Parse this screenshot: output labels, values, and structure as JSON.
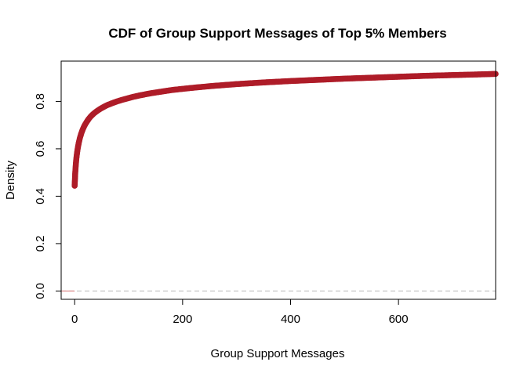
{
  "chart_data": {
    "type": "scatter",
    "title": "CDF of Group Support Messages of Top 5% Members",
    "xlabel": "Group Support Messages",
    "ylabel": "Density",
    "xlim": [
      -25,
      780
    ],
    "ylim": [
      -0.035,
      0.97
    ],
    "x_ticks": [
      0,
      200,
      400,
      600
    ],
    "x_tick_labels": [
      "0",
      "200",
      "400",
      "600"
    ],
    "y_ticks": [
      0.0,
      0.2,
      0.4,
      0.6,
      0.8
    ],
    "y_tick_labels": [
      "0.0",
      "0.2",
      "0.4",
      "0.6",
      "0.8"
    ],
    "grid": false,
    "series": [
      {
        "color": "#ae1c28",
        "marker": "filled-circle",
        "points": [
          [
            0,
            0.444
          ],
          [
            1,
            0.496
          ],
          [
            2,
            0.53
          ],
          [
            3,
            0.556
          ],
          [
            4,
            0.575
          ],
          [
            5,
            0.592
          ],
          [
            6,
            0.606
          ],
          [
            7,
            0.618
          ],
          [
            8,
            0.629
          ],
          [
            9,
            0.639
          ],
          [
            10,
            0.648
          ],
          [
            12,
            0.663
          ],
          [
            14,
            0.676
          ],
          [
            16,
            0.687
          ],
          [
            18,
            0.697
          ],
          [
            20,
            0.705
          ],
          [
            23,
            0.716
          ],
          [
            26,
            0.726
          ],
          [
            30,
            0.737
          ],
          [
            35,
            0.748
          ],
          [
            40,
            0.757
          ],
          [
            45,
            0.765
          ],
          [
            50,
            0.772
          ],
          [
            55,
            0.778
          ],
          [
            60,
            0.784
          ],
          [
            70,
            0.793
          ],
          [
            80,
            0.801
          ],
          [
            90,
            0.808
          ],
          [
            100,
            0.814
          ],
          [
            110,
            0.82
          ],
          [
            120,
            0.825
          ],
          [
            140,
            0.834
          ],
          [
            160,
            0.841
          ],
          [
            180,
            0.848
          ],
          [
            200,
            0.853
          ],
          [
            230,
            0.86
          ],
          [
            260,
            0.866
          ],
          [
            300,
            0.873
          ],
          [
            350,
            0.88
          ],
          [
            400,
            0.886
          ],
          [
            450,
            0.891
          ],
          [
            500,
            0.896
          ],
          [
            550,
            0.9
          ],
          [
            600,
            0.904
          ],
          [
            650,
            0.908
          ],
          [
            700,
            0.911
          ],
          [
            750,
            0.914
          ],
          [
            780,
            0.916
          ]
        ]
      }
    ],
    "reference_lines": [
      {
        "y": 0.0,
        "style": "dashed",
        "color": "#c0c0c0"
      }
    ],
    "baseline_segment": {
      "x_from": -25,
      "x_to": 0,
      "y": 0.0,
      "color": "#d98080"
    }
  }
}
